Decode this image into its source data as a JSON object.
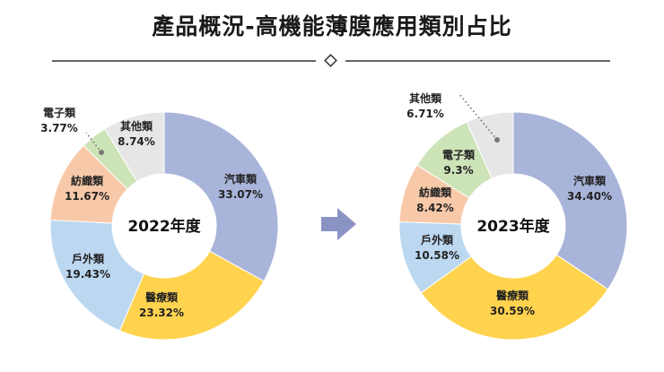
{
  "title": "產品概況-高機能薄膜應用類別占比",
  "colors": {
    "汽車類": "#a9b4da",
    "醫療類": "#ffd34e",
    "戶外類": "#bcd7f0",
    "紡織類": "#f8c9a9",
    "電子類": "#cde3b8",
    "其他類": "#e6e6e6",
    "divider": "#333333",
    "arrow": "#8b93c4"
  },
  "chart_data": [
    {
      "type": "pie",
      "title": "2022年度",
      "categories": [
        "汽車類",
        "醫療類",
        "戶外類",
        "紡織類",
        "電子類",
        "其他類"
      ],
      "values": [
        33.07,
        23.32,
        19.43,
        11.67,
        3.77,
        8.74
      ],
      "value_labels": [
        "33.07%",
        "23.32%",
        "19.43%",
        "11.67%",
        "3.77%",
        "8.74%"
      ],
      "display_names": [
        "汽車類",
        "醫療類",
        "戶外類",
        "紡織類",
        "電子類",
        "其他類"
      ]
    },
    {
      "type": "pie",
      "title": "2023年度",
      "categories": [
        "汽車類",
        "醫療類",
        "戶外類",
        "紡織類",
        "電子類",
        "其他類"
      ],
      "values": [
        34.4,
        30.59,
        10.58,
        8.42,
        9.3,
        6.71
      ],
      "value_labels": [
        "34.40%",
        "30.59%",
        "10.58%",
        "8.42%",
        "9.3%",
        "6.71%"
      ],
      "display_names": [
        "汽車類",
        "醫療類",
        "戶外類",
        "紡織類",
        "電子類",
        "其他類"
      ]
    }
  ]
}
